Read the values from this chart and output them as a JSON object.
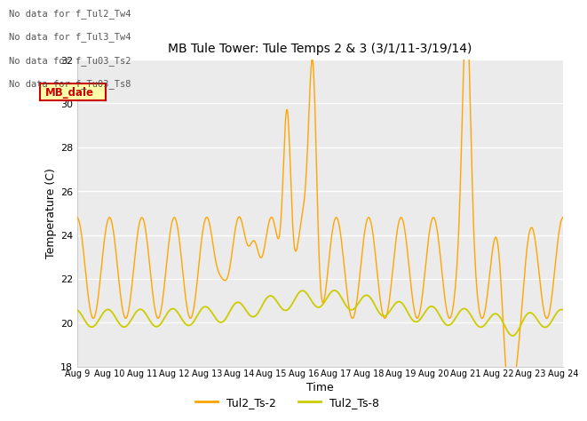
{
  "title": "MB Tule Tower: Tule Temps 2 & 3 (3/1/11-3/19/14)",
  "xlabel": "Time",
  "ylabel": "Temperature (C)",
  "ylim": [
    18,
    32
  ],
  "yticks": [
    18,
    20,
    22,
    24,
    26,
    28,
    30,
    32
  ],
  "xlim": [
    0,
    15
  ],
  "xtick_labels": [
    "Aug 9",
    "Aug 10",
    "Aug 11",
    "Aug 12",
    "Aug 13",
    "Aug 14",
    "Aug 15",
    "Aug 16",
    "Aug 17",
    "Aug 18",
    "Aug 19",
    "Aug 20",
    "Aug 21",
    "Aug 22",
    "Aug 23",
    "Aug 24"
  ],
  "color_ts2": "#FFA500",
  "color_ts8": "#CCCC00",
  "legend_labels": [
    "Tul2_Ts-2",
    "Tul2_Ts-8"
  ],
  "bg_color": "#ebebeb",
  "annotations": [
    "No data for f_Tul2_Tw4",
    "No data for f_Tul3_Tw4",
    "No data for f_Tu03_Ts2",
    "No data for f_Tu03_Ts8"
  ],
  "tooltip_text": "MB_dale",
  "tooltip_bg": "#ffffaa",
  "tooltip_border": "#cc0000"
}
